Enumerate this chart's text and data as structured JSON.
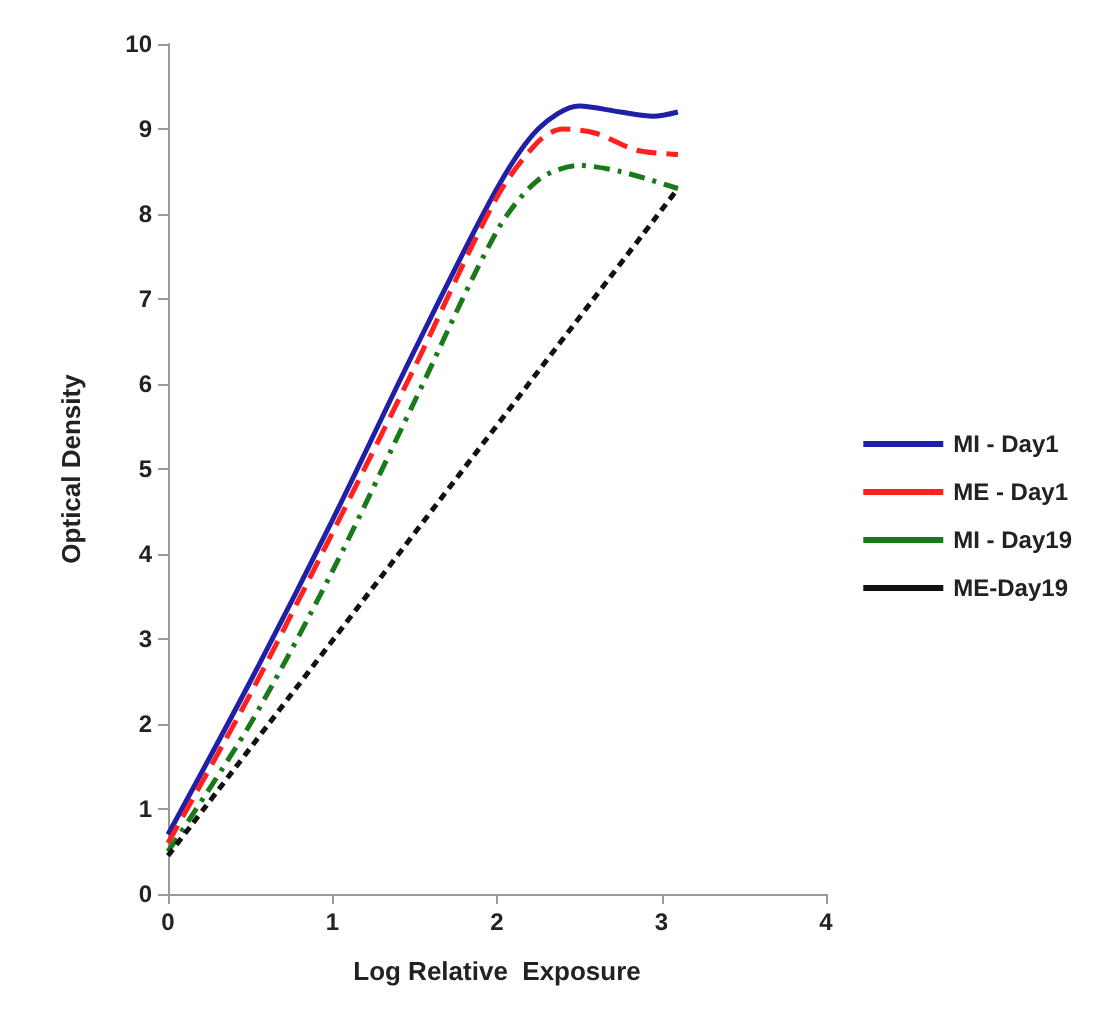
{
  "chart_data": {
    "type": "line",
    "xlabel": "Log Relative  Exposure",
    "ylabel": "Optical Density",
    "xlim": [
      0,
      4
    ],
    "xticks": [
      0,
      1,
      2,
      3,
      4
    ],
    "ylim": [
      0,
      10
    ],
    "yticks": [
      0,
      1,
      2,
      3,
      4,
      5,
      6,
      7,
      8,
      9,
      10
    ],
    "grid": false,
    "legend": "right",
    "marker": "none",
    "series": [
      {
        "name": "MI - Day1",
        "color": "#1f1fa8",
        "line_style": "solid",
        "x": [
          0,
          0.5,
          1,
          1.5,
          2,
          2.25,
          2.5,
          2.75,
          2.95,
          3.1
        ],
        "values": [
          0.7,
          2.5,
          4.4,
          6.4,
          8.3,
          9.0,
          9.27,
          9.2,
          9.15,
          9.2
        ]
      },
      {
        "name": "ME - Day1",
        "color": "#ff2020",
        "line_style": "dashed",
        "x": [
          0,
          0.5,
          1,
          1.5,
          2,
          2.25,
          2.4,
          2.6,
          2.85,
          3.1
        ],
        "values": [
          0.6,
          2.35,
          4.25,
          6.2,
          8.2,
          8.85,
          9.0,
          8.95,
          8.75,
          8.7
        ]
      },
      {
        "name": "MI - Day19",
        "color": "#1a7a1a",
        "line_style": "dashdot",
        "x": [
          0,
          0.5,
          1,
          1.5,
          2,
          2.25,
          2.5,
          2.75,
          3.1
        ],
        "values": [
          0.5,
          2.0,
          3.8,
          5.8,
          7.8,
          8.4,
          8.57,
          8.5,
          8.3
        ]
      },
      {
        "name": "ME-Day19",
        "color": "#111111",
        "line_style": "dotted",
        "x": [
          0,
          3.1
        ],
        "values": [
          0.45,
          8.3
        ]
      }
    ]
  }
}
